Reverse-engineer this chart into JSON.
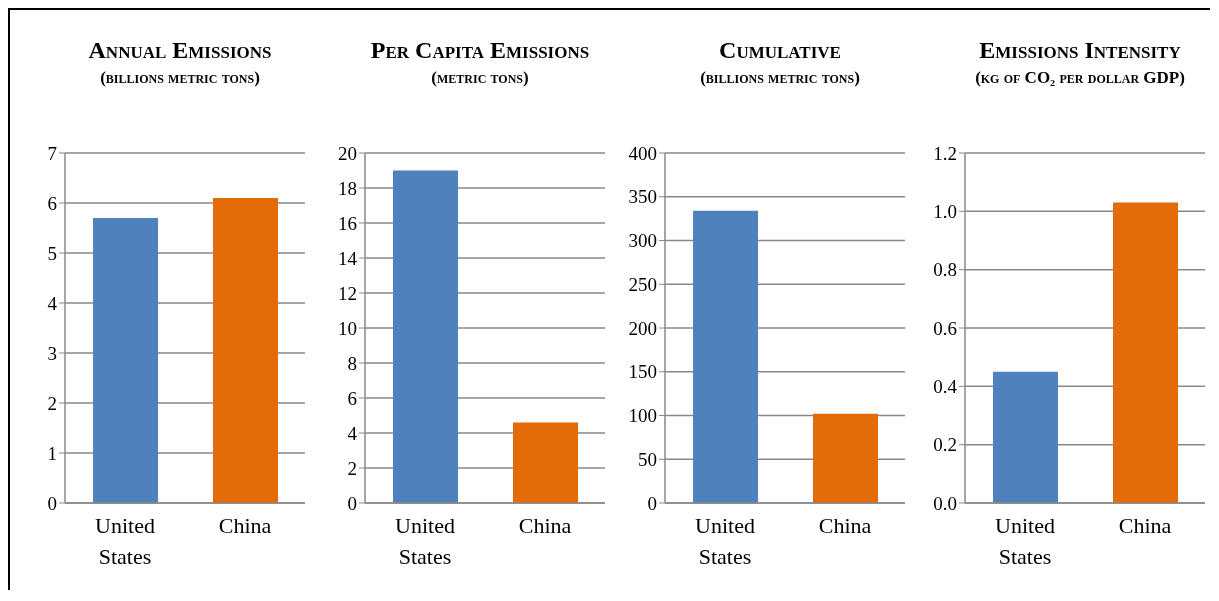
{
  "chart_data": [
    {
      "type": "bar",
      "title": "Annual Emissions",
      "subtitle": "(billions metric tons)",
      "categories": [
        "United States",
        "China"
      ],
      "values": [
        5.7,
        6.1
      ],
      "colors": [
        "#4f81bd",
        "#e36c09"
      ],
      "ylim": [
        0,
        7
      ],
      "yticks": [
        0,
        1,
        2,
        3,
        4,
        5,
        6,
        7
      ],
      "grid": "y"
    },
    {
      "type": "bar",
      "title": "Per Capita Emissions",
      "subtitle": "(metric tons)",
      "categories": [
        "United States",
        "China"
      ],
      "values": [
        19,
        4.6
      ],
      "colors": [
        "#4f81bd",
        "#e36c09"
      ],
      "ylim": [
        0,
        20
      ],
      "yticks": [
        0,
        2,
        4,
        6,
        8,
        10,
        12,
        14,
        16,
        18,
        20
      ],
      "grid": "y"
    },
    {
      "type": "bar",
      "title": "Cumulative",
      "subtitle": "(billions metric tons)",
      "categories": [
        "United States",
        "China"
      ],
      "values": [
        334,
        102
      ],
      "colors": [
        "#4f81bd",
        "#e36c09"
      ],
      "ylim": [
        0,
        400
      ],
      "yticks": [
        0,
        50,
        100,
        150,
        200,
        250,
        300,
        350,
        400
      ],
      "grid": "y"
    },
    {
      "type": "bar",
      "title": "Emissions Intensity",
      "subtitle": "(kg of CO₂ per dollar GDP)",
      "categories": [
        "United States",
        "China"
      ],
      "values": [
        0.45,
        1.03
      ],
      "colors": [
        "#4f81bd",
        "#e36c09"
      ],
      "ylim": [
        0,
        1.2
      ],
      "yticks": [
        {
          "value": 0,
          "label": "0.0"
        },
        0.2,
        0.4,
        0.6,
        0.8,
        {
          "value": 1,
          "label": "1.0"
        },
        1.2
      ],
      "grid": "y"
    }
  ]
}
